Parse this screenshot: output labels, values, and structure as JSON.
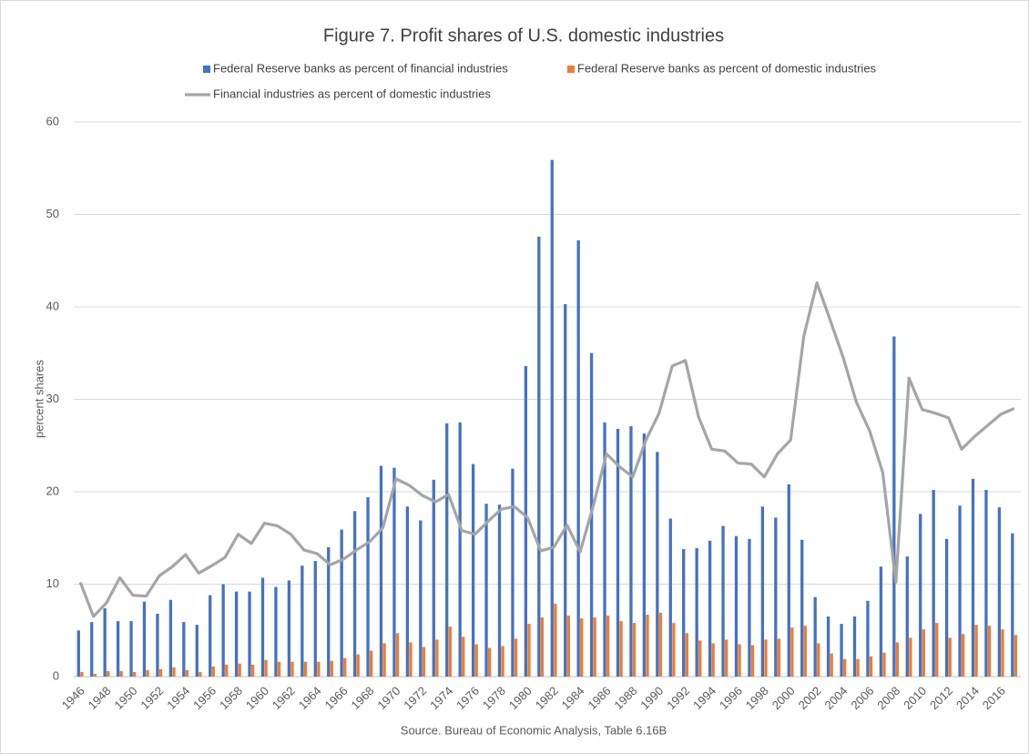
{
  "chart_data": {
    "type": "bar",
    "title": "Figure 7. Profit shares of U.S. domestic industries",
    "y_label": "percent shares",
    "source": "Source. Bureau of Economic Analysis, Table 6.16B",
    "categories": [
      "1946",
      null,
      "1948",
      null,
      "1950",
      null,
      "1952",
      null,
      "1954",
      null,
      "1956",
      null,
      "1958",
      null,
      "1960",
      null,
      "1962",
      null,
      "1964",
      null,
      "1966",
      null,
      "1968",
      null,
      "1970",
      null,
      "1972",
      null,
      "1974",
      null,
      "1976",
      null,
      "1978",
      null,
      "1980",
      null,
      "1982",
      null,
      "1984",
      null,
      "1986",
      null,
      "1988",
      null,
      "1990",
      null,
      "1992",
      null,
      "1994",
      null,
      "1996",
      null,
      "1998",
      null,
      "2000",
      null,
      "2002",
      null,
      "2004",
      null,
      "2006",
      null,
      "2008",
      null,
      "2010",
      null,
      "2012",
      null,
      "2014",
      null,
      "2016",
      null
    ],
    "series": [
      {
        "name": "Federal Reserve banks as percent of financial industries",
        "color": "#4472c4",
        "kind": "bar",
        "values": [
          5.0,
          5.9,
          7.4,
          6.0,
          6.0,
          8.1,
          6.8,
          8.3,
          5.9,
          5.6,
          8.8,
          10.0,
          9.2,
          9.2,
          10.7,
          9.7,
          10.4,
          12.0,
          12.5,
          14.0,
          15.9,
          17.9,
          19.4,
          22.8,
          22.6,
          18.4,
          16.9,
          21.3,
          27.4,
          27.5,
          23.0,
          18.7,
          18.6,
          22.5,
          33.6,
          47.6,
          55.9,
          40.3,
          47.2,
          35.0,
          27.5,
          26.8,
          27.1,
          26.3,
          24.3,
          17.1,
          13.8,
          13.9,
          14.7,
          16.3,
          15.2,
          14.9,
          18.4,
          17.2,
          20.8,
          14.8,
          8.6,
          6.5,
          5.7,
          6.5,
          8.2,
          11.9,
          36.8,
          13.0,
          17.6,
          20.2,
          14.9,
          18.5,
          21.4,
          20.2,
          18.3,
          15.5
        ]
      },
      {
        "name": "Federal Reserve banks as percent of domestic industries",
        "color": "#ed7d31",
        "kind": "bar",
        "values": [
          0.5,
          0.3,
          0.6,
          0.6,
          0.5,
          0.7,
          0.8,
          1.0,
          0.7,
          0.5,
          1.1,
          1.3,
          1.4,
          1.3,
          1.8,
          1.6,
          1.6,
          1.6,
          1.6,
          1.7,
          2.0,
          2.4,
          2.8,
          3.6,
          4.7,
          3.7,
          3.2,
          4.0,
          5.4,
          4.3,
          3.5,
          3.1,
          3.3,
          4.1,
          5.7,
          6.4,
          7.9,
          6.6,
          6.3,
          6.4,
          6.6,
          6.0,
          5.8,
          6.7,
          6.9,
          5.8,
          4.7,
          3.9,
          3.6,
          4.0,
          3.5,
          3.4,
          4.0,
          4.1,
          5.3,
          5.5,
          3.6,
          2.5,
          1.9,
          1.9,
          2.2,
          2.6,
          3.7,
          4.2,
          5.1,
          5.8,
          4.2,
          4.6,
          5.6,
          5.5,
          5.1,
          4.5
        ]
      },
      {
        "name": "Financial industries as percent of domestic industries",
        "color": "#a5a5a5",
        "kind": "line",
        "values": [
          10.2,
          6.5,
          8.0,
          10.7,
          8.8,
          8.7,
          10.9,
          11.9,
          13.2,
          11.2,
          12.0,
          12.9,
          15.4,
          14.4,
          16.6,
          16.3,
          15.4,
          13.7,
          13.3,
          12.1,
          12.7,
          13.7,
          14.6,
          16.1,
          21.4,
          20.7,
          19.6,
          18.9,
          19.7,
          15.8,
          15.4,
          16.8,
          18.1,
          18.4,
          17.2,
          13.6,
          14.0,
          16.4,
          13.5,
          18.5,
          24.1,
          22.7,
          21.6,
          25.6,
          28.5,
          33.6,
          34.2,
          28.1,
          24.6,
          24.4,
          23.1,
          23.0,
          21.6,
          24.1,
          25.6,
          36.8,
          42.6,
          38.6,
          34.5,
          29.7,
          26.6,
          22.1,
          10.2,
          32.3,
          28.9,
          28.5,
          28.0,
          24.6,
          26.0,
          27.2,
          28.4,
          29.0
        ]
      }
    ],
    "ylim": [
      0,
      60
    ],
    "yticks": [
      0,
      10,
      20,
      30,
      40,
      50,
      60
    ],
    "grid": true
  }
}
